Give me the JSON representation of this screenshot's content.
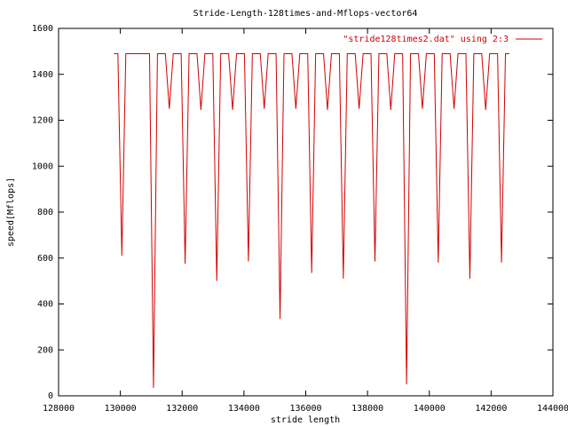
{
  "chart_data": {
    "type": "line",
    "title": "Stride-Length-128times-and-Mflops-vector64",
    "x_label": "stride length",
    "y_label": "speed[Mflops]",
    "x": [
      129792,
      129920,
      130048,
      130176,
      130304,
      130432,
      130560,
      130688,
      130816,
      130944,
      131072,
      131200,
      131328,
      131456,
      131584,
      131712,
      131840,
      131968,
      132096,
      132224,
      132352,
      132480,
      132608,
      132736,
      132864,
      132992,
      133120,
      133248,
      133376,
      133504,
      133632,
      133760,
      133888,
      134016,
      134144,
      134272,
      134400,
      134528,
      134656,
      134784,
      134912,
      135040,
      135168,
      135296,
      135424,
      135552,
      135680,
      135808,
      135936,
      136064,
      136192,
      136320,
      136448,
      136576,
      136704,
      136832,
      136960,
      137088,
      137216,
      137344,
      137472,
      137600,
      137728,
      137856,
      137984,
      138112,
      138240,
      138368,
      138496,
      138624,
      138752,
      138880,
      139008,
      139136,
      139264,
      139392,
      139520,
      139648,
      139776,
      139904,
      140032,
      140160,
      140288,
      140416,
      140544,
      140672,
      140800,
      140928,
      141056,
      141184,
      141312,
      141440,
      141568,
      141696,
      141824,
      141952,
      142080,
      142208,
      142336,
      142464,
      142592
    ],
    "series": [
      {
        "name": "\"stride128times2.dat\" using 2:3",
        "color": "#d00000",
        "values": [
          1490,
          1490,
          610,
          1490,
          1490,
          1490,
          1490,
          1490,
          1490,
          1490,
          35,
          1490,
          1490,
          1490,
          1250,
          1490,
          1490,
          1490,
          575,
          1490,
          1490,
          1490,
          1245,
          1490,
          1490,
          1490,
          500,
          1490,
          1490,
          1490,
          1245,
          1490,
          1490,
          1490,
          585,
          1490,
          1490,
          1490,
          1250,
          1490,
          1490,
          1490,
          335,
          1490,
          1490,
          1490,
          1250,
          1490,
          1490,
          1490,
          535,
          1490,
          1490,
          1490,
          1245,
          1490,
          1490,
          1490,
          510,
          1490,
          1490,
          1490,
          1250,
          1490,
          1490,
          1490,
          585,
          1490,
          1490,
          1490,
          1245,
          1490,
          1490,
          1490,
          50,
          1490,
          1490,
          1490,
          1250,
          1490,
          1490,
          1490,
          580,
          1490,
          1490,
          1490,
          1250,
          1490,
          1490,
          1490,
          510,
          1490,
          1490,
          1490,
          1245,
          1490,
          1490,
          1490,
          580,
          1490,
          1490
        ]
      }
    ],
    "xlim": [
      128000,
      144000
    ],
    "xticks": [
      128000,
      130000,
      132000,
      134000,
      136000,
      138000,
      140000,
      142000,
      144000
    ],
    "ylim": [
      0,
      1600
    ],
    "yticks": [
      0,
      200,
      400,
      600,
      800,
      1000,
      1200,
      1400,
      1600
    ],
    "legend": "top-right",
    "grid": false
  }
}
